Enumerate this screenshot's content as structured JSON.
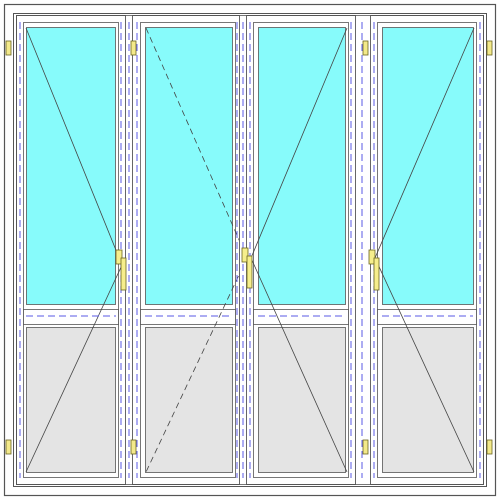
{
  "diagram": {
    "kind": "four-panel folding door elevation",
    "panel_count": 4,
    "colors": {
      "background": "#ffffff",
      "frame_fill": "#ffffff",
      "frame_stroke": "#555555",
      "glass": "#87fbfb",
      "lower_panel": "#e4e4e4",
      "gasket_dash": "#5a5ae6",
      "handle_fill": "#f6ee8c",
      "handle_stroke": "#6a6420",
      "hinge_fill": "#f3e98a",
      "opening_line": "#444444"
    },
    "panels": [
      {
        "id": "panel-1",
        "opening": "solid",
        "handle_side": "right",
        "hinge_side": "left"
      },
      {
        "id": "panel-2",
        "opening": "dashed",
        "handle_side": "none",
        "hinge_side": "left"
      },
      {
        "id": "panel-3",
        "opening": "solid",
        "handle_side": "left",
        "hinge_side": "none"
      },
      {
        "id": "panel-4",
        "opening": "solid",
        "handle_side": "left",
        "hinge_side": "right"
      }
    ],
    "handles": [
      {
        "icon": "handle-icon",
        "count": 3
      }
    ],
    "hinges": [
      {
        "icon": "hinge-icon",
        "count": 6
      }
    ]
  }
}
